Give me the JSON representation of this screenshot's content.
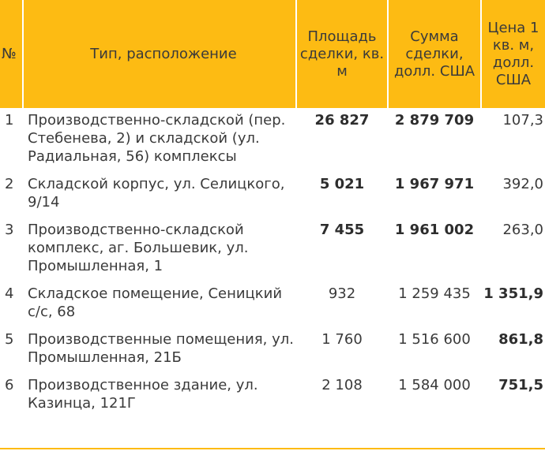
{
  "header": {
    "num": "№",
    "type": "Тип, расположение",
    "area": "Площадь сделки, кв. м",
    "sum": "Сумма сделки, долл. США",
    "price": "Цена 1 кв. м, долл. США"
  },
  "rows": [
    {
      "num": "1",
      "type": "Производственно-складской (пер. Стебенева, 2) и складской (ул. Радиальная, 56) комплексы",
      "area": "26 827",
      "sum": "2 879 709",
      "price": "107,3",
      "bold": [
        "area",
        "sum"
      ]
    },
    {
      "num": "2",
      "type": "Складской корпус, ул. Селицкого, 9/14",
      "area": "5 021",
      "sum": "1 967 971",
      "price": "392,0",
      "bold": [
        "area",
        "sum"
      ]
    },
    {
      "num": "3",
      "type": "Производственно-складской комплекс, аг. Большевик, ул. Промышленная, 1",
      "area": "7 455",
      "sum": "1 961 002",
      "price": "263,0",
      "bold": [
        "area",
        "sum"
      ]
    },
    {
      "num": "4",
      "type": "Складское помещение, Сеницкий с/с, 68",
      "area": "932",
      "sum": "1 259 435",
      "price": "1 351,9",
      "bold": [
        "price"
      ]
    },
    {
      "num": "5",
      "type": "Производственные помещения, ул. Промышленная, 21Б",
      "area": "1 760",
      "sum": "1 516 600",
      "price": "861,8",
      "bold": [
        "price"
      ]
    },
    {
      "num": "6",
      "type": "Производственное здание, ул. Казинца, 121Г",
      "area": "2 108",
      "sum": "1 584 000",
      "price": "751,5",
      "bold": [
        "price"
      ]
    }
  ],
  "colors": {
    "header_bg": "#fdbb13",
    "text": "#3a3a3a"
  }
}
